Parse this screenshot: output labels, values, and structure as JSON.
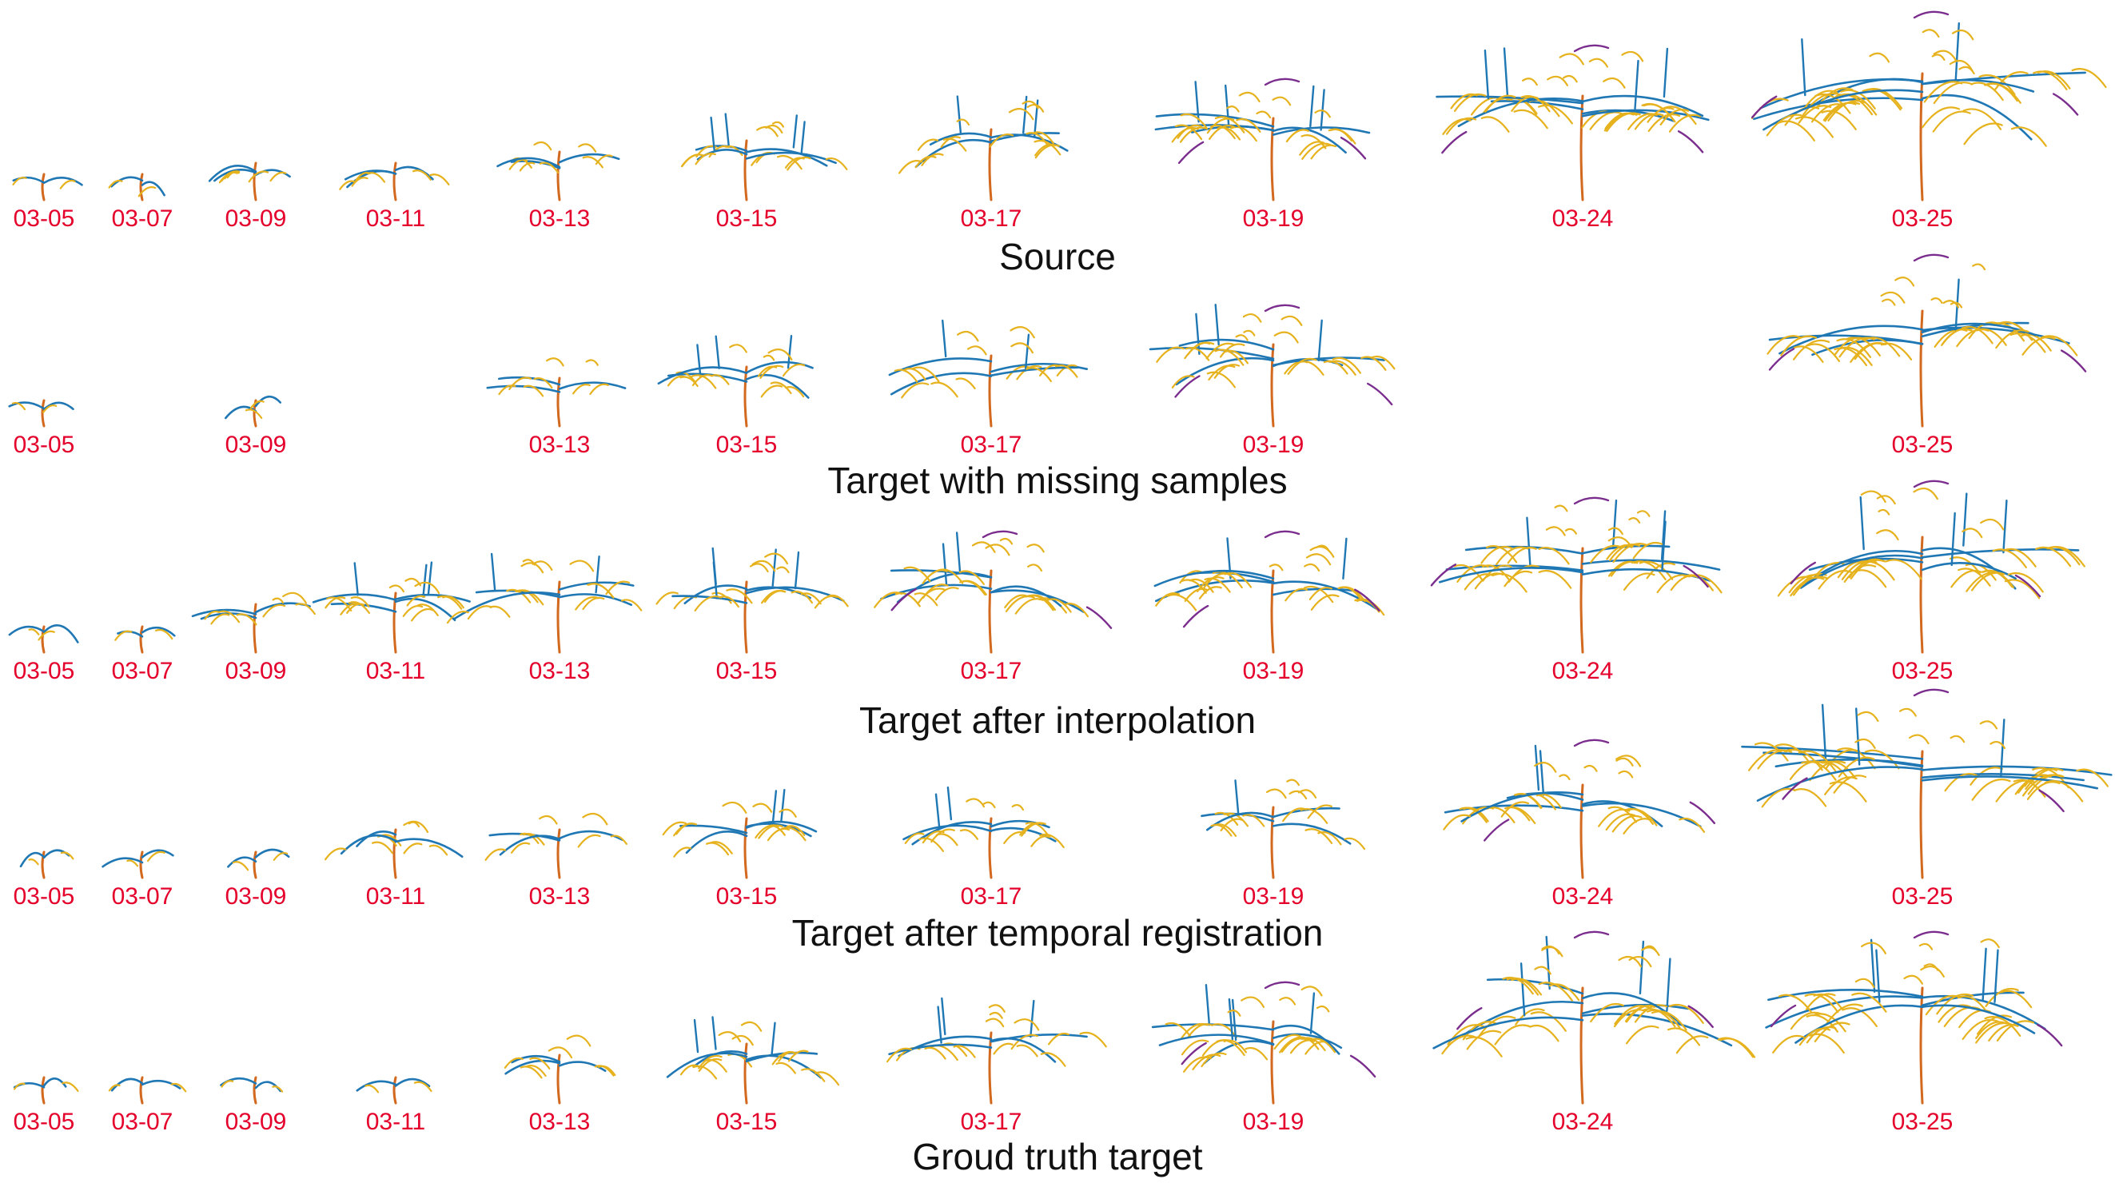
{
  "colors": {
    "stem": "#d2691e",
    "blue_branch": "#1f77b4",
    "yellow_branch": "#e6b21d",
    "purple_branch": "#7b2d8e",
    "date_label": "#e4002b",
    "title": "#111111"
  },
  "rows": [
    {
      "title": "Source",
      "samples": [
        {
          "date": "03-05",
          "size": 1
        },
        {
          "date": "03-07",
          "size": 1
        },
        {
          "date": "03-09",
          "size": 2
        },
        {
          "date": "03-11",
          "size": 2
        },
        {
          "date": "03-13",
          "size": 3
        },
        {
          "date": "03-15",
          "size": 4
        },
        {
          "date": "03-17",
          "size": 5
        },
        {
          "date": "03-19",
          "size": 6
        },
        {
          "date": "03-24",
          "size": 8
        },
        {
          "date": "03-25",
          "size": 10
        }
      ]
    },
    {
      "title": "Target with missing samples",
      "samples": [
        {
          "date": "03-05",
          "size": 1
        },
        {
          "date": "03-09",
          "size": 1
        },
        {
          "date": "03-13",
          "size": 3
        },
        {
          "date": "03-15",
          "size": 4
        },
        {
          "date": "03-17",
          "size": 5
        },
        {
          "date": "03-19",
          "size": 6
        },
        {
          "date": "03-25",
          "size": 9
        }
      ]
    },
    {
      "title": "Target after interpolation",
      "samples": [
        {
          "date": "03-05",
          "size": 1
        },
        {
          "date": "03-07",
          "size": 1
        },
        {
          "date": "03-09",
          "size": 3
        },
        {
          "date": "03-11",
          "size": 4
        },
        {
          "date": "03-13",
          "size": 5
        },
        {
          "date": "03-15",
          "size": 5
        },
        {
          "date": "03-17",
          "size": 6
        },
        {
          "date": "03-19",
          "size": 6
        },
        {
          "date": "03-24",
          "size": 8
        },
        {
          "date": "03-25",
          "size": 9
        }
      ]
    },
    {
      "title": "Target after temporal registration",
      "samples": [
        {
          "date": "03-05",
          "size": 1
        },
        {
          "date": "03-07",
          "size": 1
        },
        {
          "date": "03-09",
          "size": 1
        },
        {
          "date": "03-11",
          "size": 3
        },
        {
          "date": "03-13",
          "size": 3
        },
        {
          "date": "03-15",
          "size": 4
        },
        {
          "date": "03-17",
          "size": 4
        },
        {
          "date": "03-19",
          "size": 5
        },
        {
          "date": "03-24",
          "size": 7
        },
        {
          "date": "03-25",
          "size": 10
        }
      ]
    },
    {
      "title": "Groud truth target",
      "samples": [
        {
          "date": "03-05",
          "size": 1
        },
        {
          "date": "03-07",
          "size": 1
        },
        {
          "date": "03-09",
          "size": 1
        },
        {
          "date": "03-11",
          "size": 1
        },
        {
          "date": "03-13",
          "size": 3
        },
        {
          "date": "03-15",
          "size": 4
        },
        {
          "date": "03-17",
          "size": 5
        },
        {
          "date": "03-19",
          "size": 6
        },
        {
          "date": "03-24",
          "size": 9
        },
        {
          "date": "03-25",
          "size": 9
        }
      ]
    }
  ]
}
